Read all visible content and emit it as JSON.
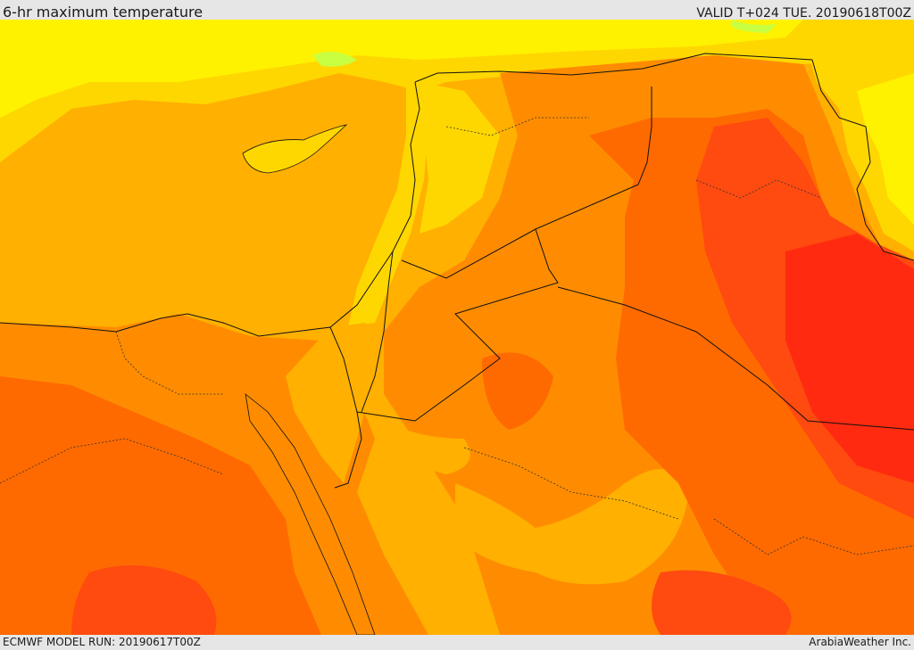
{
  "header": {
    "title": "6-hr maximum temperature",
    "valid": "VALID T+024 TUE. 20190618T00Z"
  },
  "footer": {
    "model_run": "ECMWF MODEL RUN: 20190617T00Z",
    "credit": "ArabiaWeather Inc."
  },
  "map": {
    "colors": {
      "pale_yellow": "#fff200",
      "yellow": "#ffd700",
      "light_orange": "#ffb000",
      "orange": "#ff8c00",
      "dark_orange": "#ff6a00",
      "red_orange": "#ff4a10",
      "red": "#ff2a10",
      "green_hint": "#c8ff40",
      "border": "#111111"
    }
  }
}
